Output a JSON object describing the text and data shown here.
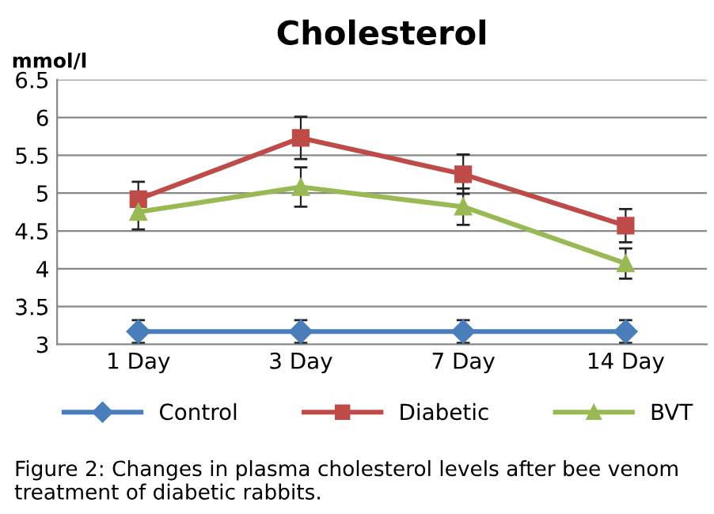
{
  "chart_data": {
    "type": "line",
    "title": "Cholesterol",
    "ylabel": "mmol/l",
    "categories": [
      "1 Day",
      "3 Day",
      "7 Day",
      "14 Day"
    ],
    "series": [
      {
        "name": "Control",
        "color": "#4a7ebb",
        "marker": "diamond",
        "values": [
          3.17,
          3.17,
          3.17,
          3.17
        ],
        "errors": [
          0.15,
          0.15,
          0.15,
          0.15
        ]
      },
      {
        "name": "Diabetic",
        "color": "#be4b48",
        "marker": "square",
        "values": [
          4.92,
          5.73,
          5.25,
          4.57
        ],
        "errors": [
          0.23,
          0.28,
          0.26,
          0.22
        ]
      },
      {
        "name": "BVT",
        "color": "#98b954",
        "marker": "triangle",
        "values": [
          4.75,
          5.08,
          4.82,
          4.07
        ],
        "errors": [
          0.23,
          0.26,
          0.24,
          0.2
        ]
      }
    ],
    "ylim": [
      3,
      6.5
    ],
    "yticks": [
      3,
      3.5,
      4,
      4.5,
      5,
      5.5,
      6,
      6.5
    ],
    "grid": "y",
    "legend": "bottom",
    "annotations": [
      "Figure 2: Changes in plasma cholesterol levels after bee venom treatment of diabetic rabbits."
    ]
  }
}
